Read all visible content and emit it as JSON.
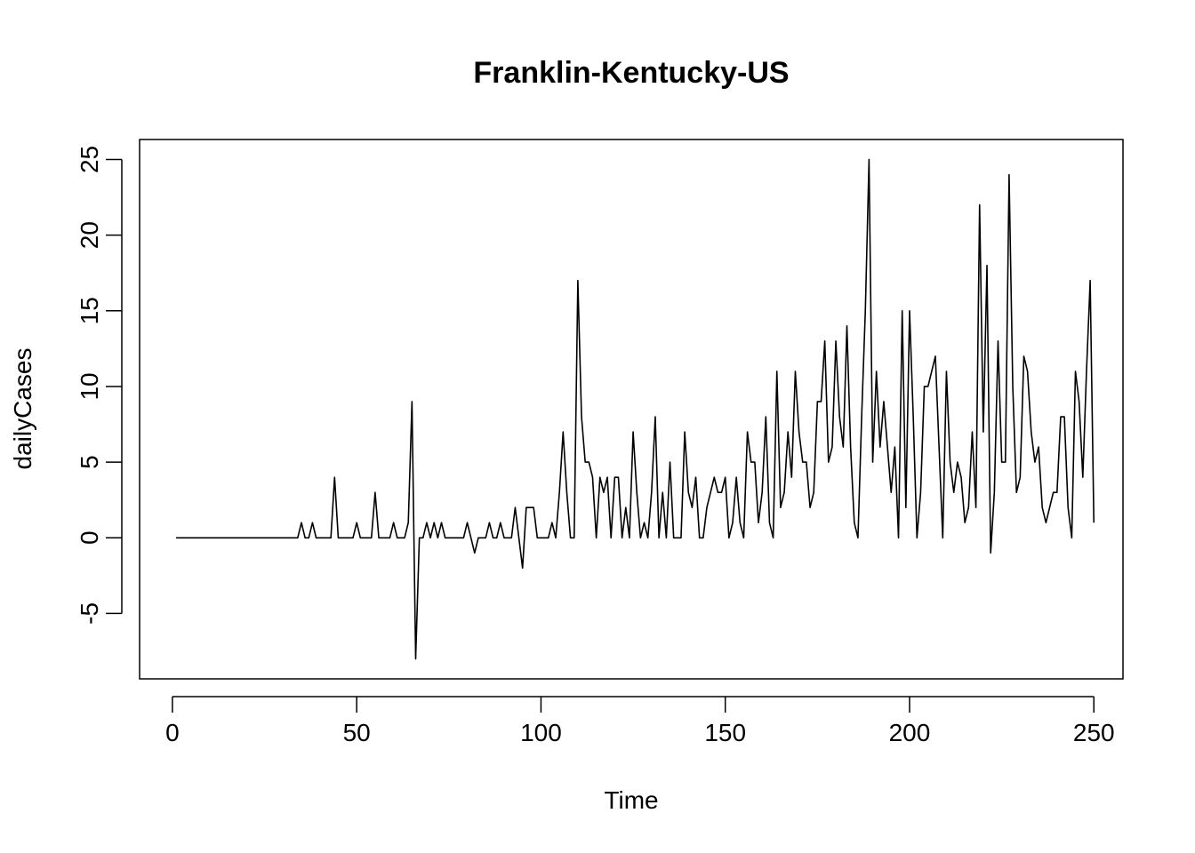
{
  "chart_data": {
    "type": "line",
    "title": "Franklin-Kentucky-US",
    "xlabel": "Time",
    "ylabel": "dailyCases",
    "xlim": [
      -8.9,
      257.9
    ],
    "ylim": [
      -9.32,
      26.32
    ],
    "x_ticks": [
      0,
      50,
      100,
      150,
      200,
      250
    ],
    "y_ticks": [
      -5,
      0,
      5,
      10,
      15,
      20,
      25
    ],
    "grid": false,
    "legend": "none",
    "line_color": "#000000",
    "series": [
      {
        "x_start": 1,
        "values": [
          0,
          0,
          0,
          0,
          0,
          0,
          0,
          0,
          0,
          0,
          0,
          0,
          0,
          0,
          0,
          0,
          0,
          0,
          0,
          0,
          0,
          0,
          0,
          0,
          0,
          0,
          0,
          0,
          0,
          0,
          0,
          0,
          0,
          0,
          1,
          0,
          0,
          1,
          0,
          0,
          0,
          0,
          0,
          4,
          0,
          0,
          0,
          0,
          0,
          1,
          0,
          0,
          0,
          0,
          3,
          0,
          0,
          0,
          0,
          1,
          0,
          0,
          0,
          1,
          9,
          -8,
          0,
          0,
          1,
          0,
          1,
          0,
          1,
          0,
          0,
          0,
          0,
          0,
          0,
          1,
          0,
          -1,
          0,
          0,
          0,
          1,
          0,
          0,
          1,
          0,
          0,
          0,
          2,
          0,
          -2,
          2,
          2,
          2,
          0,
          0,
          0,
          0,
          1,
          0,
          3,
          7,
          3,
          0,
          0,
          17,
          8,
          5,
          5,
          4,
          0,
          4,
          3,
          4,
          0,
          4,
          4,
          0,
          2,
          0,
          7,
          3,
          0,
          1,
          0,
          3,
          8,
          0,
          3,
          0,
          5,
          0,
          0,
          0,
          7,
          3,
          2,
          4,
          0,
          0,
          2,
          3,
          4,
          3,
          3,
          4,
          0,
          1,
          4,
          1,
          0,
          7,
          5,
          5,
          1,
          3,
          8,
          1,
          0,
          11,
          2,
          3,
          7,
          4,
          11,
          7,
          5,
          5,
          2,
          3,
          9,
          9,
          13,
          5,
          6,
          13,
          8,
          6,
          14,
          6,
          1,
          0,
          8,
          15,
          25,
          5,
          11,
          6,
          9,
          6,
          3,
          6,
          0,
          15,
          2,
          15,
          8,
          0,
          3,
          10,
          10,
          11,
          12,
          6,
          0,
          11,
          5,
          3,
          5,
          4,
          1,
          2,
          7,
          2,
          22,
          7,
          18,
          -1,
          3,
          13,
          5,
          5,
          24,
          10,
          3,
          4,
          12,
          11,
          7,
          5,
          6,
          2,
          1,
          2,
          3,
          3,
          8,
          8,
          2,
          0,
          11,
          9,
          4,
          11,
          17,
          1
        ]
      }
    ]
  }
}
